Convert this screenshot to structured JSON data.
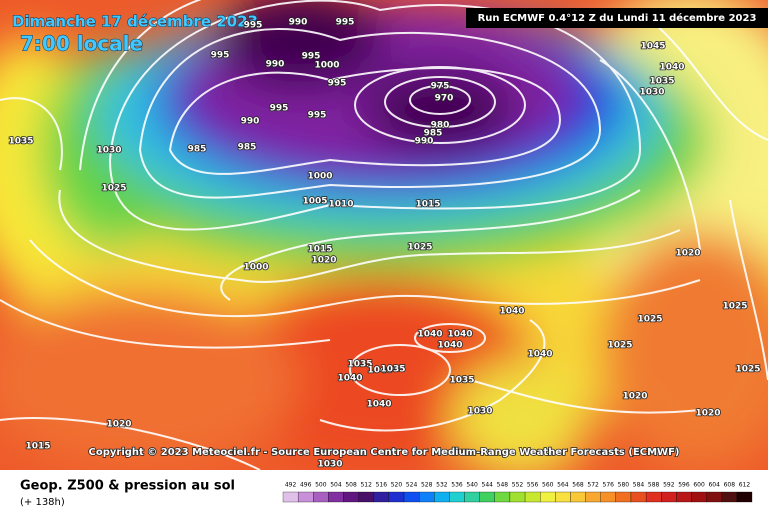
{
  "header": {
    "title": "Dimanche 17 décembre 2023",
    "time": "7:00 locale",
    "run": "Run ECMWF 0.4°12 Z du Lundi 11 décembre 2023"
  },
  "copyright": "Copyright © 2023 Meteociel.fr - Source European Centre for Medium-Range Weather Forecasts (ECMWF)",
  "footer": {
    "product": "Geop. Z500 & pression au sol",
    "lead": "(+ 138h)"
  },
  "colorbar": {
    "ticks": [
      492,
      496,
      500,
      504,
      508,
      512,
      516,
      520,
      524,
      528,
      532,
      536,
      540,
      544,
      548,
      552,
      556,
      560,
      564,
      568,
      572,
      576,
      580,
      584,
      588,
      592,
      596,
      600,
      604,
      608,
      612
    ],
    "colors": [
      "#e0c0e8",
      "#c890d8",
      "#a860c0",
      "#8030a0",
      "#601880",
      "#481068",
      "#3020a0",
      "#2030d0",
      "#1050f0",
      "#1080f8",
      "#10b0f0",
      "#20d0d0",
      "#30d0a0",
      "#40d060",
      "#70d840",
      "#a0e030",
      "#c8e830",
      "#f0f040",
      "#f8e040",
      "#f8c838",
      "#f8a830",
      "#f89028",
      "#f07020",
      "#e85020",
      "#e03020",
      "#d02020",
      "#b81818",
      "#a01010",
      "#801010",
      "#501010",
      "#200000"
    ]
  },
  "isobar_labels": [
    "995",
    "990",
    "995",
    "995",
    "990",
    "995",
    "1000",
    "995",
    "975",
    "970",
    "995",
    "995",
    "990",
    "980",
    "985",
    "990",
    "985",
    "985",
    "1035",
    "1030",
    "1025",
    "1000",
    "1005",
    "1010",
    "1015",
    "1025",
    "1015",
    "1020",
    "1000",
    "1045",
    "1040",
    "1035",
    "1030",
    "1020",
    "1025",
    "1025",
    "1040",
    "1040",
    "1040",
    "1040",
    "1035",
    "1040",
    "1035",
    "1040",
    "1035",
    "1040",
    "1040",
    "1025",
    "1030",
    "1020",
    "1020",
    "1025",
    "1020",
    "1015",
    "1030"
  ]
}
